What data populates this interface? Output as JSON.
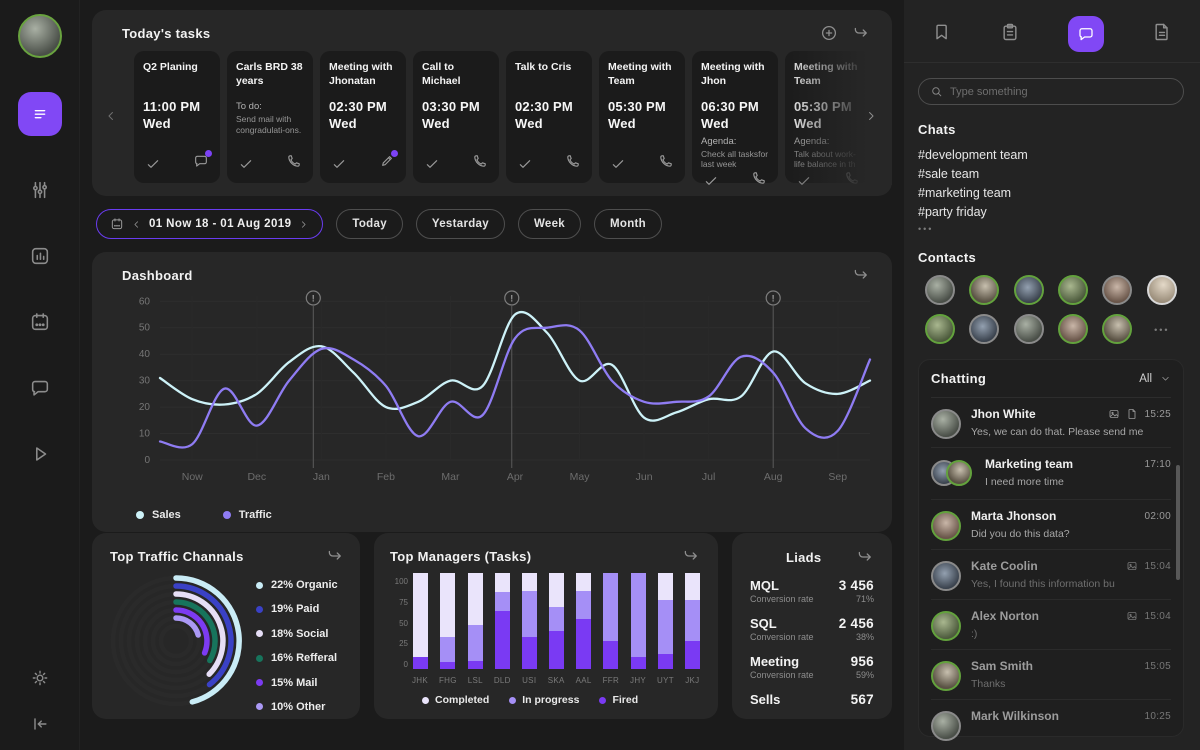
{
  "accent": "#8148f5",
  "rail": {
    "items": [
      "menu",
      "sliders",
      "stats",
      "calendar",
      "chat",
      "play"
    ],
    "bottom": [
      "theme",
      "collapse"
    ]
  },
  "tasks": {
    "title": "Today's tasks",
    "cards": [
      {
        "title": "Q2 Planing",
        "time": "11:00 PM",
        "day": "Wed",
        "note_label": "",
        "note": "",
        "action": "chat",
        "action_badge": true
      },
      {
        "title": "Carls BRD 38 years",
        "time": "",
        "day": "",
        "note_label": "To do:",
        "note": "Send mail with congradulati-ons.",
        "action": "phone",
        "action_badge": false
      },
      {
        "title": "Meeting with Jhonatan",
        "time": "02:30 PM",
        "day": "Wed",
        "note_label": "",
        "note": "",
        "action": "pencil",
        "action_badge": true
      },
      {
        "title": "Call to Michael",
        "time": "03:30 PM",
        "day": "Wed",
        "note_label": "",
        "note": "",
        "action": "phone",
        "action_badge": false
      },
      {
        "title": "Talk to Cris",
        "time": "02:30 PM",
        "day": "Wed",
        "note_label": "",
        "note": "",
        "action": "phone",
        "action_badge": false
      },
      {
        "title": "Meeting with Team",
        "time": "05:30 PM",
        "day": "Wed",
        "note_label": "",
        "note": "",
        "action": "phone",
        "action_badge": false
      },
      {
        "title": "Meeting with Jhon",
        "time": "06:30 PM",
        "day": "Wed",
        "note_label": "Agenda:",
        "note": "Check all tasksfor last week",
        "action": "phone",
        "action_badge": false
      },
      {
        "title": "Meeting with Team",
        "time": "05:30 PM",
        "day": "Wed",
        "note_label": "Agenda:",
        "note": "Talk about work-life balance in th",
        "action": "phone",
        "action_badge": false
      }
    ]
  },
  "date_bar": {
    "range": "01 Now 18 - 01 Aug 2019",
    "buttons": [
      "Today",
      "Yestarday",
      "Week",
      "Month"
    ]
  },
  "dashboard": {
    "title": "Dashboard",
    "chart_data": {
      "type": "line",
      "x_labels": [
        "Now",
        "Dec",
        "Jan",
        "Feb",
        "Mar",
        "Apr",
        "May",
        "Jun",
        "Jul",
        "Aug",
        "Sep"
      ],
      "y_ticks": [
        0,
        10,
        20,
        30,
        40,
        50,
        60
      ],
      "ylim": [
        0,
        62
      ],
      "grid": true,
      "legend_position": "bottom-left",
      "markers_at": [
        4.75,
        10.9,
        19
      ],
      "series": [
        {
          "name": "Sales",
          "color": "#cdf2f8",
          "values": [
            31,
            23,
            21,
            25,
            37,
            43,
            33,
            20,
            22,
            30,
            28,
            55,
            48,
            30,
            36,
            16,
            18,
            23,
            24,
            41,
            29,
            25,
            30
          ]
        },
        {
          "name": "Traffic",
          "color": "#8f7cf3",
          "values": [
            7,
            6,
            27,
            13,
            30,
            42,
            38,
            28,
            9,
            22,
            17,
            46,
            50,
            49,
            30,
            22,
            22,
            24,
            39,
            33,
            12,
            11,
            38
          ]
        }
      ]
    }
  },
  "traffic_channels": {
    "title": "Top Traffic Channals",
    "chart_data": {
      "type": "radial-bars",
      "items": [
        {
          "label": "22% Organic",
          "percent": 22,
          "color": "#c9ecf6"
        },
        {
          "label": "19% Paid",
          "percent": 19,
          "color": "#3a41c6"
        },
        {
          "label": "18% Social",
          "percent": 18,
          "color": "#e6def6"
        },
        {
          "label": "16% Refferal",
          "percent": 16,
          "color": "#17745c"
        },
        {
          "label": "15% Mail",
          "percent": 15,
          "color": "#7c3bf2"
        },
        {
          "label": "10% Other",
          "percent": 10,
          "color": "#ab99f5"
        }
      ]
    }
  },
  "top_managers": {
    "title": "Top Managers (Tasks)",
    "chart_data": {
      "type": "stacked-bar",
      "y_ticks": [
        0,
        25,
        50,
        75,
        100
      ],
      "categories": [
        "JHK",
        "FHG",
        "LSL",
        "DLD",
        "USI",
        "SKA",
        "AAL",
        "FFR",
        "JHY",
        "UYT",
        "JKJ"
      ],
      "series": [
        {
          "name": "Completed",
          "color": "#eae4fb",
          "values": [
            87,
            67,
            54,
            20,
            19,
            35,
            19,
            0,
            0,
            28,
            28
          ]
        },
        {
          "name": "In progress",
          "color": "#a58ff6",
          "values": [
            0,
            26,
            38,
            20,
            48,
            25,
            29,
            71,
            87,
            56,
            43
          ]
        },
        {
          "name": "Fired",
          "color": "#7a3af3",
          "values": [
            13,
            7,
            8,
            60,
            33,
            40,
            52,
            29,
            13,
            16,
            29
          ]
        }
      ]
    }
  },
  "leads": {
    "title": "Liads",
    "rows": [
      {
        "label": "MQL",
        "value": "3 456",
        "sub_label": "Conversion rate",
        "sub_value": "71%"
      },
      {
        "label": "SQL",
        "value": "2 456",
        "sub_label": "Conversion rate",
        "sub_value": "38%"
      },
      {
        "label": "Meeting",
        "value": "956",
        "sub_label": "Conversion rate",
        "sub_value": "59%"
      },
      {
        "label": "Sells",
        "value": "567",
        "sub_label": "",
        "sub_value": ""
      }
    ]
  },
  "right_panel": {
    "tabs": [
      "bookmarks",
      "notes",
      "chat",
      "files"
    ],
    "active_tab": "chat",
    "search_placeholder": "Type something",
    "chats": {
      "title": "Chats",
      "items": [
        "#development team",
        "#sale team",
        "#marketing team",
        "#party friday"
      ],
      "more": "•••"
    },
    "contacts": {
      "title": "Contacts",
      "more": "•••",
      "avatars": [
        {
          "ring": "gray",
          "v": 1
        },
        {
          "ring": "green",
          "v": 2
        },
        {
          "ring": "green",
          "v": 3
        },
        {
          "ring": "green",
          "v": 4
        },
        {
          "ring": "gray",
          "v": 5
        },
        {
          "ring": "light",
          "v": 6
        },
        {
          "ring": "green",
          "v": 4
        },
        {
          "ring": "gray",
          "v": 3
        },
        {
          "ring": "gray",
          "v": 1
        },
        {
          "ring": "green",
          "v": 5
        },
        {
          "ring": "green",
          "v": 2
        }
      ]
    },
    "chatting": {
      "title": "Chatting",
      "filter": "All",
      "messages": [
        {
          "name": "Jhon White",
          "time": "15:25",
          "text": "Yes, we can do that. Please send me",
          "icons": [
            "image",
            "file"
          ],
          "ring": "gray",
          "dim": false,
          "group": false,
          "v": 1
        },
        {
          "name": "Marketing team",
          "time": "17:10",
          "text": "I need more time",
          "icons": [],
          "ring": "green",
          "dim": false,
          "group": true,
          "v": 2
        },
        {
          "name": "Marta Jhonson",
          "time": "02:00",
          "text": "Did you do this data?",
          "icons": [],
          "ring": "green",
          "dim": false,
          "group": false,
          "v": 5
        },
        {
          "name": "Kate Coolin",
          "time": "15:04",
          "text": "Yes, I found this information bu",
          "icons": [
            "image"
          ],
          "ring": "gray",
          "dim": true,
          "group": false,
          "v": 3
        },
        {
          "name": "Alex Norton",
          "time": "15:04",
          "text": ":)",
          "icons": [
            "image"
          ],
          "ring": "green",
          "dim": true,
          "group": false,
          "v": 4
        },
        {
          "name": "Sam Smith",
          "time": "15:05",
          "text": "Thanks",
          "icons": [],
          "ring": "green",
          "dim": true,
          "group": false,
          "v": 2
        },
        {
          "name": "Mark Wilkinson",
          "time": "10:25",
          "text": "",
          "icons": [],
          "ring": "gray",
          "dim": true,
          "group": false,
          "v": 1
        }
      ]
    }
  }
}
